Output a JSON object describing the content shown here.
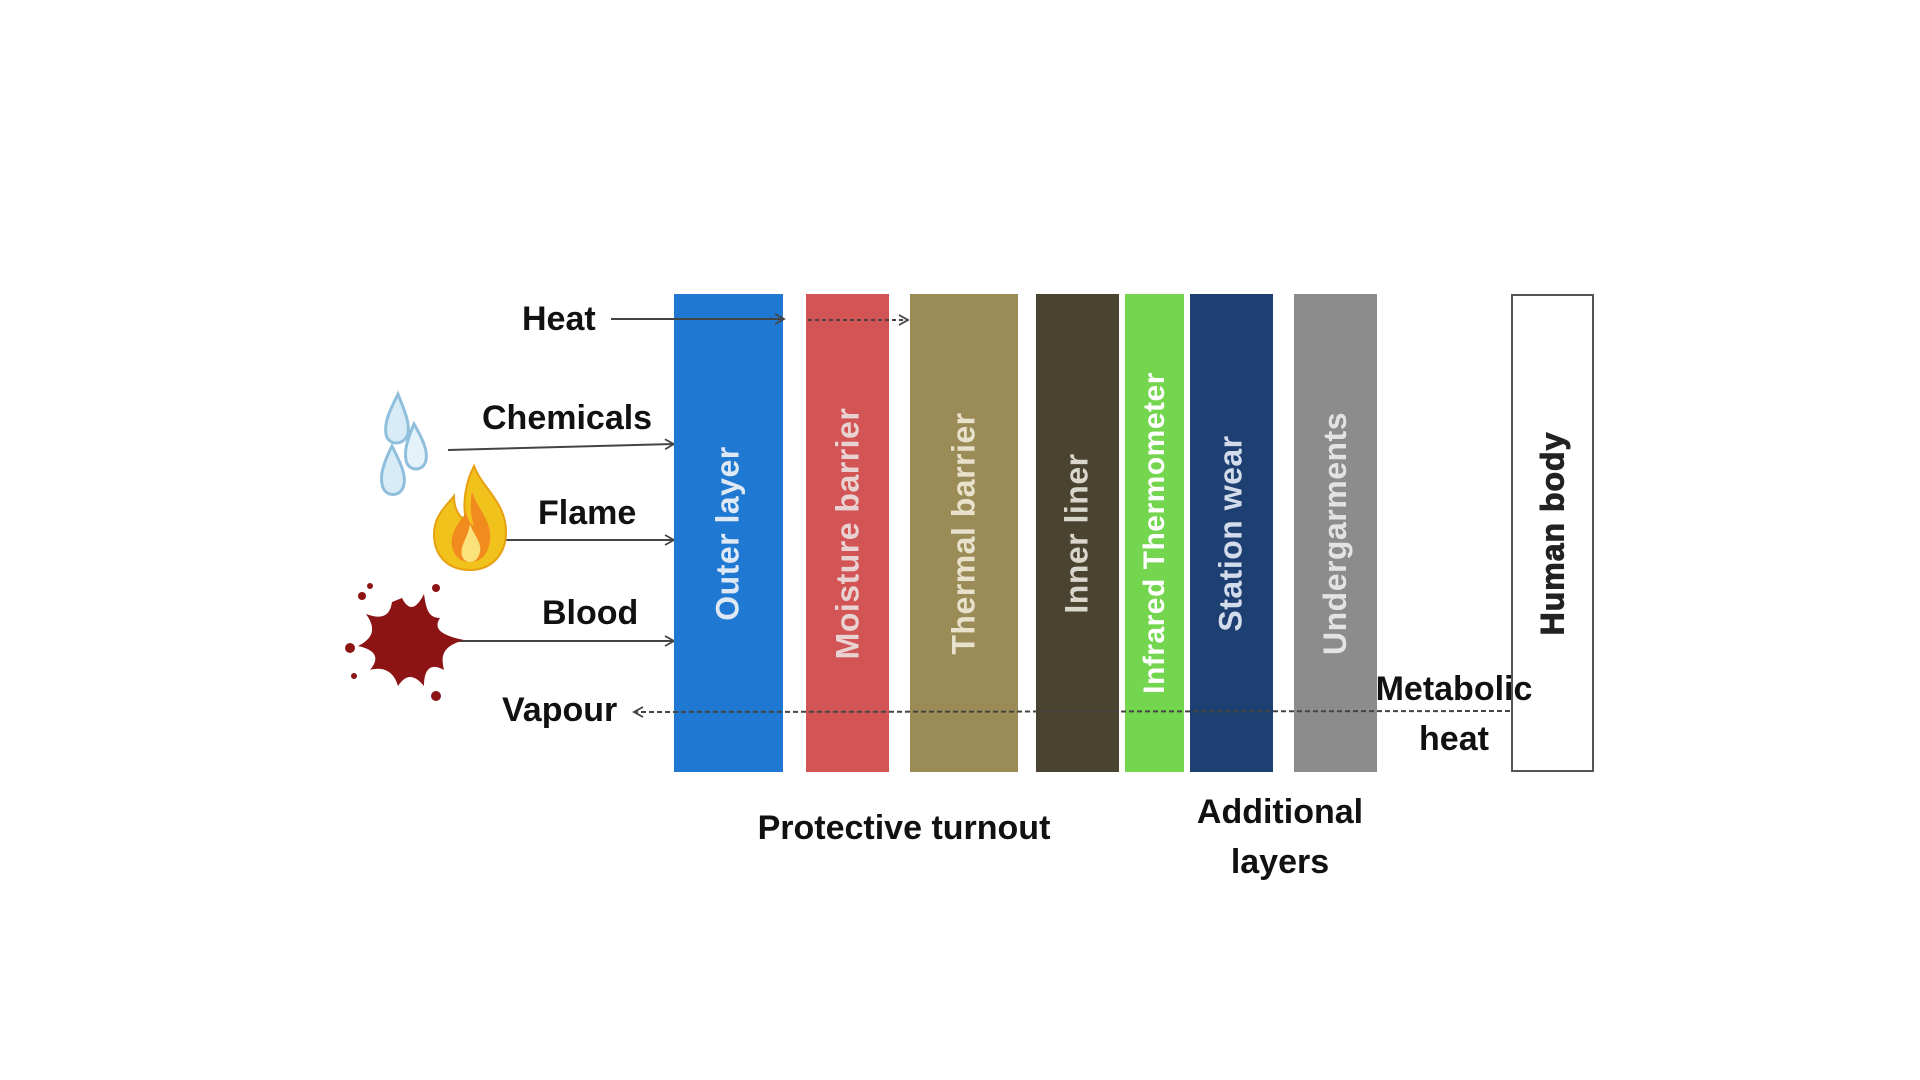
{
  "inputs": {
    "heat": "Heat",
    "chemicals": "Chemicals",
    "flame": "Flame",
    "blood": "Blood",
    "vapour": "Vapour"
  },
  "layers": [
    {
      "label": "Outer layer",
      "color": "#1f78d1",
      "text_color": "#dfe9f5"
    },
    {
      "label": "Moisture barrier",
      "color": "#d25454",
      "text_color": "#e9d2d2"
    },
    {
      "label": "Thermal barrier",
      "color": "#9b8c57",
      "text_color": "#e8e2cc"
    },
    {
      "label": "Inner liner",
      "color": "#4a4330",
      "text_color": "#d9d6cc"
    },
    {
      "label": "Infrared Thermometer",
      "color": "#74d64f",
      "text_color": "#ffffff"
    },
    {
      "label": "Station wear",
      "color": "#1d3f72",
      "text_color": "#d4dceb"
    },
    {
      "label": "Undergarments",
      "color": "#8c8c8c",
      "text_color": "#e3e3e3"
    }
  ],
  "human_body": "Human body",
  "metabolic": {
    "line1": "Metabolic",
    "line2": "heat"
  },
  "captions": {
    "protective": "Protective turnout",
    "additional_line1": "Additional",
    "additional_line2": "layers"
  },
  "icons": {
    "water": "water-drops-icon",
    "flame": "flame-icon",
    "blood": "blood-splatter-icon"
  }
}
